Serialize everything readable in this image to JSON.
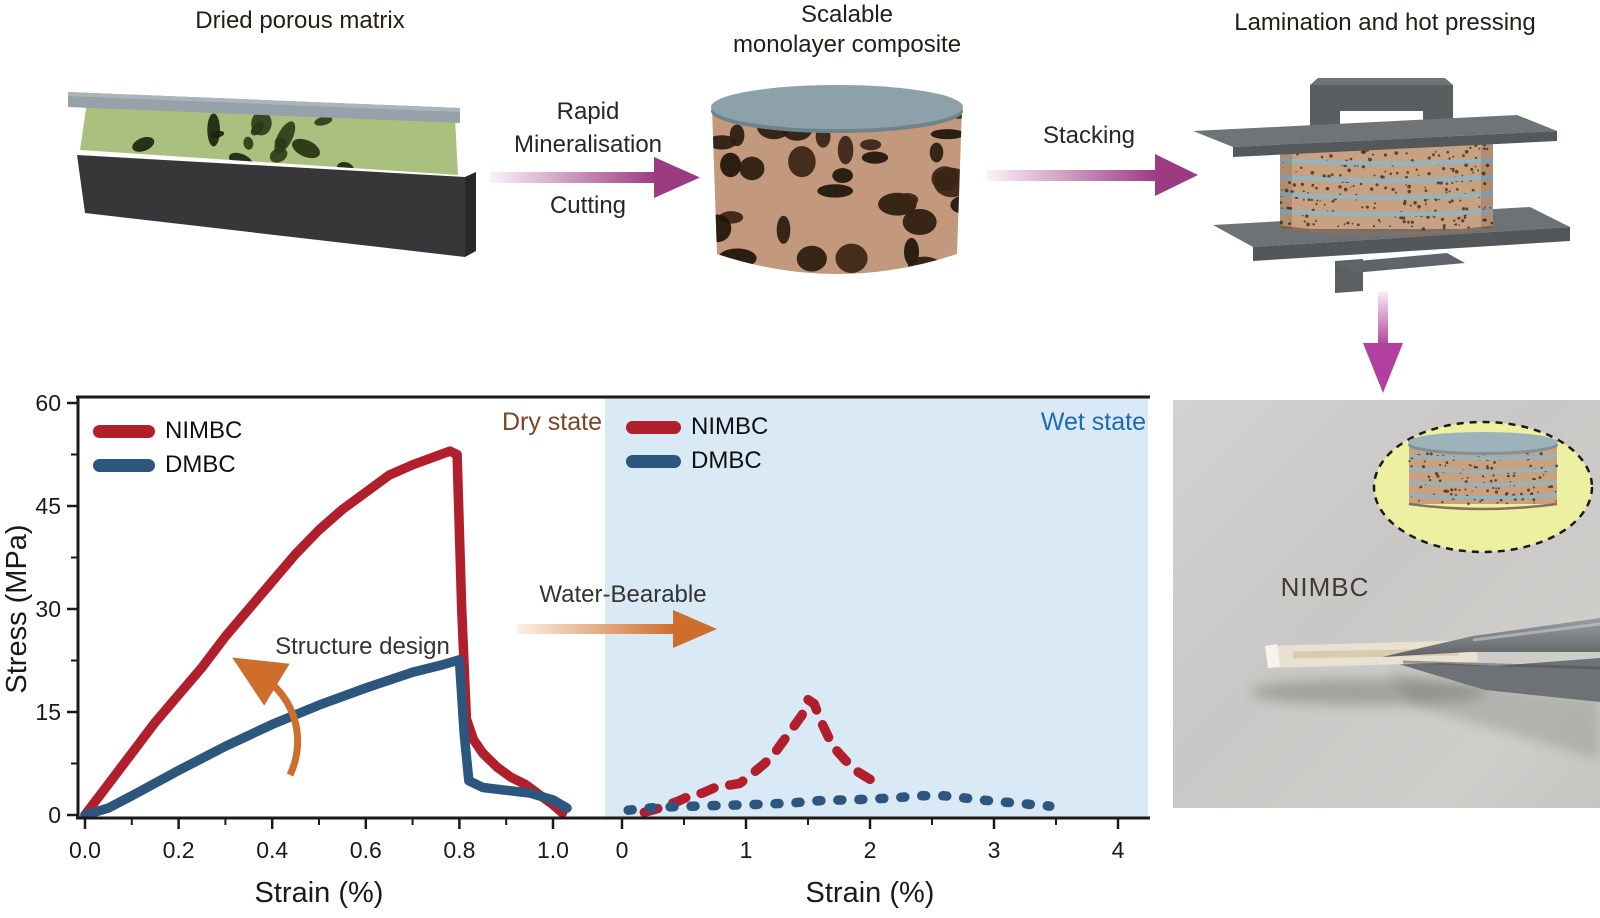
{
  "top_flow": {
    "step1_label": "Dried porous matrix",
    "step2_label_line1": "Scalable",
    "step2_label_line2": "monolayer composite",
    "step3_label": "Lamination and hot pressing",
    "arrow1_label_line1": "Rapid",
    "arrow1_label_line2": "Mineralisation",
    "arrow1_sublabel": "Cutting",
    "arrow2_label": "Stacking",
    "arrow_color": "#9c3b82",
    "down_arrow_color": "#b13f9e"
  },
  "annotations": {
    "structure_design": "Structure design",
    "water_bearable": "Water-Bearable",
    "arrow_color": "#cf6d2d"
  },
  "photo": {
    "label": "NIMBC"
  },
  "chart_data": [
    {
      "type": "line",
      "panel": "dry",
      "panel_label": "Dry state",
      "panel_label_color": "#7b4526",
      "background": "#ffffff",
      "xlabel": "Strain (%)",
      "ylabel": "Stress (MPa)",
      "xlim": [
        0.0,
        1.05
      ],
      "ylim": [
        0,
        60
      ],
      "xticks": [
        0.0,
        0.2,
        0.4,
        0.6,
        0.8,
        1.0
      ],
      "yticks": [
        0,
        15,
        30,
        45,
        60
      ],
      "xtick_decimals": 1,
      "grid": false,
      "legend_position": "top-left",
      "line_style": "solid",
      "series": [
        {
          "name": "NIMBC",
          "color": "#b11f2d",
          "points": [
            [
              0,
              0
            ],
            [
              0.05,
              4.5
            ],
            [
              0.1,
              9
            ],
            [
              0.15,
              13.5
            ],
            [
              0.2,
              17.5
            ],
            [
              0.25,
              21.5
            ],
            [
              0.3,
              26
            ],
            [
              0.35,
              30
            ],
            [
              0.4,
              34
            ],
            [
              0.45,
              38
            ],
            [
              0.5,
              41.5
            ],
            [
              0.55,
              44.5
            ],
            [
              0.6,
              47
            ],
            [
              0.65,
              49.5
            ],
            [
              0.7,
              51
            ],
            [
              0.74,
              52
            ],
            [
              0.78,
              53
            ],
            [
              0.795,
              52.5
            ],
            [
              0.805,
              30
            ],
            [
              0.815,
              14
            ],
            [
              0.83,
              11
            ],
            [
              0.85,
              9
            ],
            [
              0.88,
              7
            ],
            [
              0.91,
              5.5
            ],
            [
              0.94,
              4.5
            ],
            [
              0.97,
              3
            ],
            [
              1.0,
              1.5
            ],
            [
              1.02,
              0.3
            ]
          ]
        },
        {
          "name": "DMBC",
          "color": "#2d567f",
          "points": [
            [
              0,
              0
            ],
            [
              0.05,
              1
            ],
            [
              0.1,
              2.8
            ],
            [
              0.2,
              6.5
            ],
            [
              0.3,
              10
            ],
            [
              0.4,
              13.2
            ],
            [
              0.5,
              16
            ],
            [
              0.6,
              18.5
            ],
            [
              0.7,
              20.8
            ],
            [
              0.76,
              21.8
            ],
            [
              0.8,
              22.6
            ],
            [
              0.81,
              12
            ],
            [
              0.82,
              5
            ],
            [
              0.85,
              4
            ],
            [
              0.9,
              3.6
            ],
            [
              0.95,
              3.2
            ],
            [
              1.0,
              2.2
            ],
            [
              1.03,
              1
            ]
          ]
        }
      ]
    },
    {
      "type": "line",
      "panel": "wet",
      "panel_label": "Wet state",
      "panel_label_color": "#1e6ab1",
      "background": "#d9e9f5",
      "xlabel": "Strain (%)",
      "xlim": [
        0,
        4
      ],
      "ylim": [
        0,
        60
      ],
      "xticks": [
        0,
        1,
        2,
        3,
        4
      ],
      "yticks": [
        0,
        15,
        30,
        45,
        60
      ],
      "xtick_decimals": 0,
      "grid": false,
      "legend_position": "top-left",
      "line_style": "dashed",
      "series": [
        {
          "name": "NIMBC",
          "color": "#b11f2d",
          "dash": "14 16",
          "points": [
            [
              0.18,
              0.4
            ],
            [
              0.3,
              1
            ],
            [
              0.45,
              2
            ],
            [
              0.55,
              2.8
            ],
            [
              0.65,
              3.2
            ],
            [
              0.75,
              4
            ],
            [
              0.85,
              4.3
            ],
            [
              0.95,
              4.6
            ],
            [
              1.05,
              6
            ],
            [
              1.15,
              7.5
            ],
            [
              1.25,
              9.5
            ],
            [
              1.35,
              12
            ],
            [
              1.45,
              14.5
            ],
            [
              1.5,
              16.8
            ],
            [
              1.55,
              16.2
            ],
            [
              1.6,
              13.8
            ],
            [
              1.7,
              10
            ],
            [
              1.8,
              8
            ],
            [
              1.9,
              6.3
            ],
            [
              2.0,
              5.2
            ],
            [
              2.1,
              4.2
            ]
          ]
        },
        {
          "name": "DMBC",
          "color": "#2d567f",
          "dash": "4 17",
          "points": [
            [
              0.05,
              0.7
            ],
            [
              0.2,
              1.0
            ],
            [
              0.4,
              1.2
            ],
            [
              0.6,
              1.3
            ],
            [
              0.8,
              1.4
            ],
            [
              1.0,
              1.5
            ],
            [
              1.2,
              1.6
            ],
            [
              1.4,
              1.8
            ],
            [
              1.6,
              2.1
            ],
            [
              1.8,
              2.2
            ],
            [
              2.0,
              2.3
            ],
            [
              2.2,
              2.5
            ],
            [
              2.4,
              2.8
            ],
            [
              2.6,
              2.8
            ],
            [
              2.8,
              2.4
            ],
            [
              3.0,
              2.0
            ],
            [
              3.2,
              1.7
            ],
            [
              3.45,
              1.3
            ]
          ]
        }
      ]
    }
  ]
}
